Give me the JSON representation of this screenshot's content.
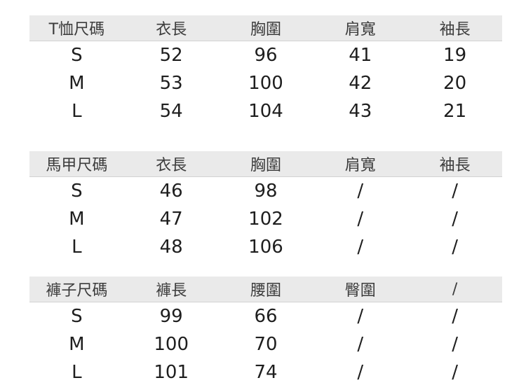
{
  "colors": {
    "page_background": "#ffffff",
    "header_background": "#eaeaea",
    "header_text": "#3c3c3c",
    "cell_text": "#1e1e1e"
  },
  "chart_data": [
    {
      "type": "table",
      "title": "T恤尺碼",
      "columns": [
        "T恤尺碼",
        "衣長",
        "胸圍",
        "肩寬",
        "袖長"
      ],
      "rows": [
        [
          "S",
          52,
          96,
          41,
          19
        ],
        [
          "M",
          53,
          100,
          42,
          20
        ],
        [
          "L",
          54,
          104,
          43,
          21
        ]
      ]
    },
    {
      "type": "table",
      "title": "馬甲尺碼",
      "columns": [
        "馬甲尺碼",
        "衣長",
        "胸圍",
        "肩寬",
        "袖長"
      ],
      "rows": [
        [
          "S",
          46,
          98,
          "/",
          "/"
        ],
        [
          "M",
          47,
          102,
          "/",
          "/"
        ],
        [
          "L",
          48,
          106,
          "/",
          "/"
        ]
      ]
    },
    {
      "type": "table",
      "title": "褲子尺碼",
      "columns": [
        "褲子尺碼",
        "褲長",
        "腰圍",
        "臀圍",
        "/"
      ],
      "rows": [
        [
          "S",
          99,
          66,
          "/",
          "/"
        ],
        [
          "M",
          100,
          70,
          "/",
          "/"
        ],
        [
          "L",
          101,
          74,
          "/",
          "/"
        ]
      ]
    }
  ]
}
